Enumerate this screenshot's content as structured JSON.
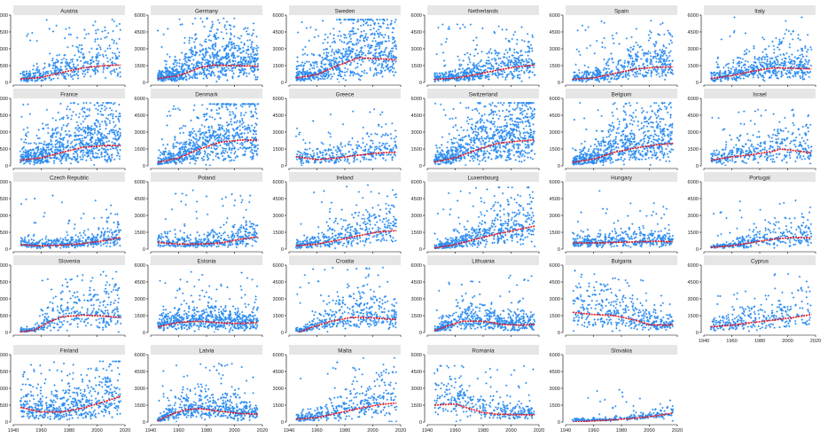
{
  "colors": {
    "points": "#2b8cf0",
    "trend": "#e8141c",
    "strip": "#e6e6e6",
    "axis": "#000000"
  },
  "chart_data": {
    "type": "scatter",
    "x_axis": {
      "ticks": [
        1940,
        1960,
        1980,
        2000,
        2020
      ],
      "range": [
        1940,
        2020
      ]
    },
    "y_axis": {
      "ticks": [
        0,
        1500,
        3000,
        4500,
        6000
      ],
      "range": [
        0,
        6000
      ]
    },
    "panels": [
      {
        "name": "Austria",
        "x_start": 1945,
        "x_end": 2017,
        "density": 1.0,
        "spread": 1.0,
        "peak": 5600,
        "trend": [
          [
            1945,
            300
          ],
          [
            1960,
            450
          ],
          [
            1975,
            900
          ],
          [
            1990,
            1300
          ],
          [
            2005,
            1500
          ],
          [
            2017,
            1550
          ]
        ]
      },
      {
        "name": "Germany",
        "x_start": 1945,
        "x_end": 2017,
        "density": 2.0,
        "spread": 1.1,
        "peak": 5700,
        "trend": [
          [
            1945,
            350
          ],
          [
            1960,
            600
          ],
          [
            1975,
            1300
          ],
          [
            1985,
            1550
          ],
          [
            2000,
            1500
          ],
          [
            2017,
            1450
          ]
        ]
      },
      {
        "name": "Sweden",
        "x_start": 1945,
        "x_end": 2017,
        "density": 1.8,
        "spread": 1.2,
        "peak": 5600,
        "trend": [
          [
            1945,
            400
          ],
          [
            1960,
            700
          ],
          [
            1975,
            1500
          ],
          [
            1990,
            2200
          ],
          [
            2005,
            2100
          ],
          [
            2017,
            2000
          ]
        ]
      },
      {
        "name": "Netherlands",
        "x_start": 1945,
        "x_end": 2017,
        "density": 1.3,
        "spread": 1.0,
        "peak": 5200,
        "trend": [
          [
            1945,
            250
          ],
          [
            1960,
            400
          ],
          [
            1975,
            700
          ],
          [
            1990,
            1100
          ],
          [
            2005,
            1400
          ],
          [
            2017,
            1550
          ]
        ]
      },
      {
        "name": "Spain",
        "x_start": 1945,
        "x_end": 2017,
        "density": 1.2,
        "spread": 1.0,
        "peak": 5500,
        "trend": [
          [
            1945,
            300
          ],
          [
            1960,
            400
          ],
          [
            1975,
            800
          ],
          [
            1990,
            1200
          ],
          [
            2005,
            1350
          ],
          [
            2017,
            1400
          ]
        ]
      },
      {
        "name": "Italy",
        "x_start": 1945,
        "x_end": 2017,
        "density": 1.3,
        "spread": 1.0,
        "peak": 5800,
        "trend": [
          [
            1945,
            350
          ],
          [
            1960,
            600
          ],
          [
            1975,
            1000
          ],
          [
            1990,
            1300
          ],
          [
            2005,
            1250
          ],
          [
            2017,
            1200
          ]
        ]
      },
      {
        "name": "France",
        "x_start": 1945,
        "x_end": 2017,
        "density": 2.0,
        "spread": 1.1,
        "peak": 5600,
        "trend": [
          [
            1945,
            500
          ],
          [
            1960,
            700
          ],
          [
            1975,
            1200
          ],
          [
            1990,
            1650
          ],
          [
            2005,
            1800
          ],
          [
            2017,
            1800
          ]
        ]
      },
      {
        "name": "Denmark",
        "x_start": 1945,
        "x_end": 2017,
        "density": 1.8,
        "spread": 1.1,
        "peak": 5500,
        "trend": [
          [
            1945,
            300
          ],
          [
            1960,
            700
          ],
          [
            1975,
            1500
          ],
          [
            1990,
            2100
          ],
          [
            2005,
            2300
          ],
          [
            2017,
            2300
          ]
        ]
      },
      {
        "name": "Greece",
        "x_start": 1945,
        "x_end": 2017,
        "density": 0.8,
        "spread": 0.9,
        "peak": 5400,
        "trend": [
          [
            1945,
            800
          ],
          [
            1960,
            550
          ],
          [
            1975,
            700
          ],
          [
            1990,
            950
          ],
          [
            2005,
            1150
          ],
          [
            2017,
            1200
          ]
        ]
      },
      {
        "name": "Switzerland",
        "x_start": 1945,
        "x_end": 2017,
        "density": 2.0,
        "spread": 1.1,
        "peak": 5600,
        "trend": [
          [
            1945,
            350
          ],
          [
            1960,
            700
          ],
          [
            1975,
            1400
          ],
          [
            1990,
            2000
          ],
          [
            2005,
            2200
          ],
          [
            2017,
            2300
          ]
        ]
      },
      {
        "name": "Belgium",
        "x_start": 1945,
        "x_end": 2017,
        "density": 1.8,
        "spread": 1.1,
        "peak": 5600,
        "trend": [
          [
            1945,
            300
          ],
          [
            1960,
            600
          ],
          [
            1975,
            1200
          ],
          [
            1990,
            1600
          ],
          [
            2005,
            1850
          ],
          [
            2017,
            2000
          ]
        ]
      },
      {
        "name": "Israel",
        "x_start": 1945,
        "x_end": 2017,
        "density": 0.9,
        "spread": 1.0,
        "peak": 5000,
        "trend": [
          [
            1945,
            500
          ],
          [
            1960,
            800
          ],
          [
            1975,
            1000
          ],
          [
            1990,
            1300
          ],
          [
            1995,
            1500
          ],
          [
            2005,
            1350
          ],
          [
            2017,
            1150
          ]
        ]
      },
      {
        "name": "Czech Republic",
        "x_start": 1945,
        "x_end": 2017,
        "density": 1.0,
        "spread": 0.9,
        "peak": 4800,
        "trend": [
          [
            1945,
            400
          ],
          [
            1960,
            300
          ],
          [
            1975,
            350
          ],
          [
            1990,
            500
          ],
          [
            2005,
            750
          ],
          [
            2017,
            1050
          ]
        ]
      },
      {
        "name": "Poland",
        "x_start": 1945,
        "x_end": 2017,
        "density": 1.0,
        "spread": 0.9,
        "peak": 5400,
        "trend": [
          [
            1945,
            600
          ],
          [
            1960,
            450
          ],
          [
            1975,
            450
          ],
          [
            1990,
            550
          ],
          [
            2005,
            900
          ],
          [
            2017,
            1100
          ]
        ]
      },
      {
        "name": "Ireland",
        "x_start": 1945,
        "x_end": 2017,
        "density": 1.0,
        "spread": 1.0,
        "peak": 5700,
        "trend": [
          [
            1945,
            300
          ],
          [
            1960,
            450
          ],
          [
            1975,
            800
          ],
          [
            1990,
            1200
          ],
          [
            2005,
            1550
          ],
          [
            2017,
            1650
          ]
        ]
      },
      {
        "name": "Luxembourg",
        "x_start": 1945,
        "x_end": 2017,
        "density": 1.3,
        "spread": 1.0,
        "peak": 5500,
        "trend": [
          [
            1945,
            100
          ],
          [
            1960,
            400
          ],
          [
            1975,
            900
          ],
          [
            1990,
            1350
          ],
          [
            2005,
            1750
          ],
          [
            2017,
            2050
          ]
        ]
      },
      {
        "name": "Hungary",
        "x_start": 1945,
        "x_end": 2017,
        "density": 1.0,
        "spread": 0.8,
        "peak": 5400,
        "trend": [
          [
            1945,
            550
          ],
          [
            1960,
            550
          ],
          [
            1975,
            600
          ],
          [
            1990,
            650
          ],
          [
            2005,
            700
          ],
          [
            2017,
            650
          ]
        ]
      },
      {
        "name": "Portugal",
        "x_start": 1945,
        "x_end": 2017,
        "density": 0.8,
        "spread": 0.9,
        "peak": 4800,
        "trend": [
          [
            1945,
            150
          ],
          [
            1960,
            300
          ],
          [
            1975,
            600
          ],
          [
            1990,
            900
          ],
          [
            2005,
            1050
          ],
          [
            2017,
            1000
          ]
        ]
      },
      {
        "name": "Slovenia",
        "x_start": 1945,
        "x_end": 2017,
        "density": 0.9,
        "spread": 1.0,
        "peak": 5400,
        "trend": [
          [
            1945,
            50
          ],
          [
            1955,
            200
          ],
          [
            1965,
            900
          ],
          [
            1975,
            1400
          ],
          [
            1990,
            1550
          ],
          [
            2005,
            1450
          ],
          [
            2017,
            1350
          ]
        ]
      },
      {
        "name": "Estonia",
        "x_start": 1945,
        "x_end": 2017,
        "density": 1.5,
        "spread": 0.9,
        "peak": 5400,
        "trend": [
          [
            1945,
            500
          ],
          [
            1960,
            900
          ],
          [
            1975,
            1000
          ],
          [
            1990,
            850
          ],
          [
            2005,
            800
          ],
          [
            2017,
            900
          ]
        ]
      },
      {
        "name": "Croatia",
        "x_start": 1945,
        "x_end": 2017,
        "density": 1.0,
        "spread": 1.0,
        "peak": 5800,
        "trend": [
          [
            1945,
            -100
          ],
          [
            1955,
            400
          ],
          [
            1970,
            1000
          ],
          [
            1985,
            1350
          ],
          [
            2000,
            1300
          ],
          [
            2017,
            1150
          ]
        ]
      },
      {
        "name": "Lithuania",
        "x_start": 1945,
        "x_end": 2017,
        "density": 1.3,
        "spread": 0.9,
        "peak": 5200,
        "trend": [
          [
            1945,
            150
          ],
          [
            1955,
            600
          ],
          [
            1965,
            1000
          ],
          [
            1980,
            1000
          ],
          [
            1995,
            700
          ],
          [
            2010,
            650
          ],
          [
            2017,
            750
          ]
        ]
      },
      {
        "name": "Bulgaria",
        "x_start": 1945,
        "x_end": 2017,
        "density": 1.0,
        "spread": 0.9,
        "peak": 5500,
        "trend": [
          [
            1945,
            1800
          ],
          [
            1960,
            1600
          ],
          [
            1975,
            1500
          ],
          [
            1990,
            1100
          ],
          [
            2000,
            700
          ],
          [
            2010,
            650
          ],
          [
            2017,
            700
          ]
        ]
      },
      {
        "name": "Cyprus",
        "x_start": 1945,
        "x_end": 2017,
        "density": 0.7,
        "spread": 1.0,
        "peak": 5200,
        "trend": [
          [
            1945,
            500
          ],
          [
            1960,
            650
          ],
          [
            1975,
            900
          ],
          [
            1990,
            1100
          ],
          [
            2005,
            1350
          ],
          [
            2017,
            1600
          ]
        ]
      },
      {
        "name": "Finland",
        "x_start": 1945,
        "x_end": 2017,
        "density": 1.3,
        "spread": 1.0,
        "peak": 5400,
        "trend": [
          [
            1945,
            1300
          ],
          [
            1960,
            900
          ],
          [
            1975,
            900
          ],
          [
            1990,
            1250
          ],
          [
            2005,
            1800
          ],
          [
            2017,
            2300
          ]
        ]
      },
      {
        "name": "Latvia",
        "x_start": 1945,
        "x_end": 2017,
        "density": 1.3,
        "spread": 0.9,
        "peak": 5300,
        "trend": [
          [
            1945,
            100
          ],
          [
            1955,
            700
          ],
          [
            1965,
            1100
          ],
          [
            1975,
            1200
          ],
          [
            1990,
            950
          ],
          [
            2005,
            750
          ],
          [
            2017,
            700
          ]
        ]
      },
      {
        "name": "Malta",
        "x_start": 1945,
        "x_end": 2017,
        "density": 0.9,
        "spread": 1.0,
        "peak": 5700,
        "trend": [
          [
            1945,
            250
          ],
          [
            1960,
            400
          ],
          [
            1975,
            800
          ],
          [
            1990,
            1200
          ],
          [
            2005,
            1550
          ],
          [
            2017,
            1700
          ]
        ]
      },
      {
        "name": "Romania",
        "x_start": 1945,
        "x_end": 2017,
        "density": 0.8,
        "spread": 0.9,
        "peak": 5000,
        "trend": [
          [
            1945,
            1500
          ],
          [
            1960,
            1600
          ],
          [
            1970,
            1200
          ],
          [
            1980,
            850
          ],
          [
            1990,
            700
          ],
          [
            2005,
            650
          ],
          [
            2017,
            650
          ]
        ]
      },
      {
        "name": "Slovakia",
        "x_start": 1945,
        "x_end": 2017,
        "density": 0.6,
        "spread": 0.6,
        "peak": 2900,
        "trend": [
          [
            1945,
            0
          ],
          [
            1960,
            100
          ],
          [
            1975,
            200
          ],
          [
            1990,
            350
          ],
          [
            2005,
            550
          ],
          [
            2017,
            800
          ]
        ]
      }
    ]
  }
}
